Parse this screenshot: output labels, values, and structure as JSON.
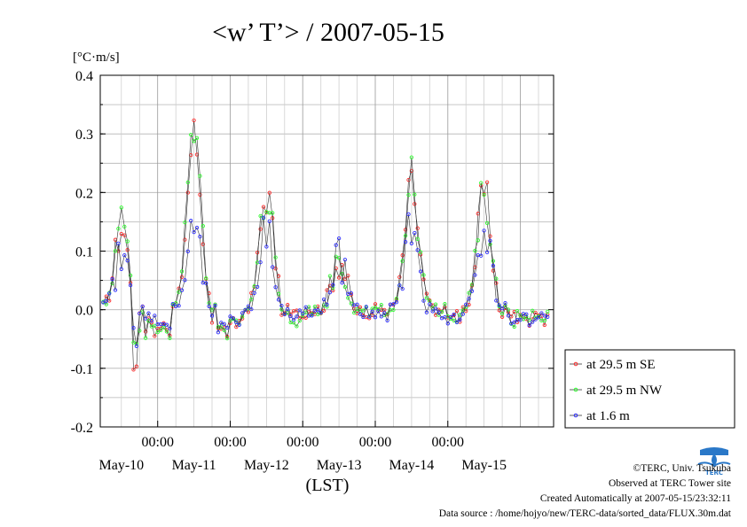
{
  "chart_data": {
    "type": "line",
    "title": "<w’ T’> / 2007-05-15",
    "ylabel": "[°C·m/s]",
    "xlabel": "(LST)",
    "ylim": [
      -0.2,
      0.4
    ],
    "yticks": [
      -0.2,
      -0.1,
      0.0,
      0.1,
      0.2,
      0.3,
      0.4
    ],
    "ytick_labels": [
      "-0.2",
      "-0.1",
      "0.0",
      "0.1",
      "0.2",
      "0.3",
      "0.4"
    ],
    "xlim_hours": [
      -7.0,
      143.0
    ],
    "x_major_tick_labels": [
      "00:00",
      "00:00",
      "00:00",
      "00:00",
      "00:00"
    ],
    "x_date_labels": [
      "May-10",
      "May-11",
      "May-12",
      "May-13",
      "May-14",
      "May-15"
    ],
    "grid": true,
    "legend_position": "right-bottom",
    "series": [
      {
        "name": "at 29.5 m SE",
        "color": "#ff3030",
        "peaks": [
          0.14,
          0.3,
          0.2,
          0.09,
          0.21,
          0.2
        ],
        "dips": [
          -0.105,
          -0.07,
          -0.05,
          -0.01,
          0.0,
          -0.03
        ]
      },
      {
        "name": "at 29.5 m NW",
        "color": "#30ff30",
        "peaks": [
          0.15,
          0.32,
          0.2,
          0.09,
          0.22,
          0.2
        ],
        "dips": [
          -0.07,
          -0.085,
          -0.05,
          -0.01,
          0.0,
          -0.035
        ]
      },
      {
        "name": "at 1.6 m",
        "color": "#3030ff",
        "peaks": [
          0.09,
          0.14,
          0.14,
          0.09,
          0.14,
          0.14
        ],
        "dips": [
          -0.05,
          -0.06,
          -0.04,
          -0.01,
          -0.02,
          -0.04
        ]
      }
    ]
  },
  "footer": {
    "credit": "©TERC, Univ. Tsukuba",
    "site": "Observed at TERC Tower site",
    "created": "Created Automatically at 2007-05-15/23:32:11",
    "source": "Data source : /home/hojyo/new/TERC-data/sorted_data/FLUX.30m.dat"
  },
  "logo_text": "TERC"
}
